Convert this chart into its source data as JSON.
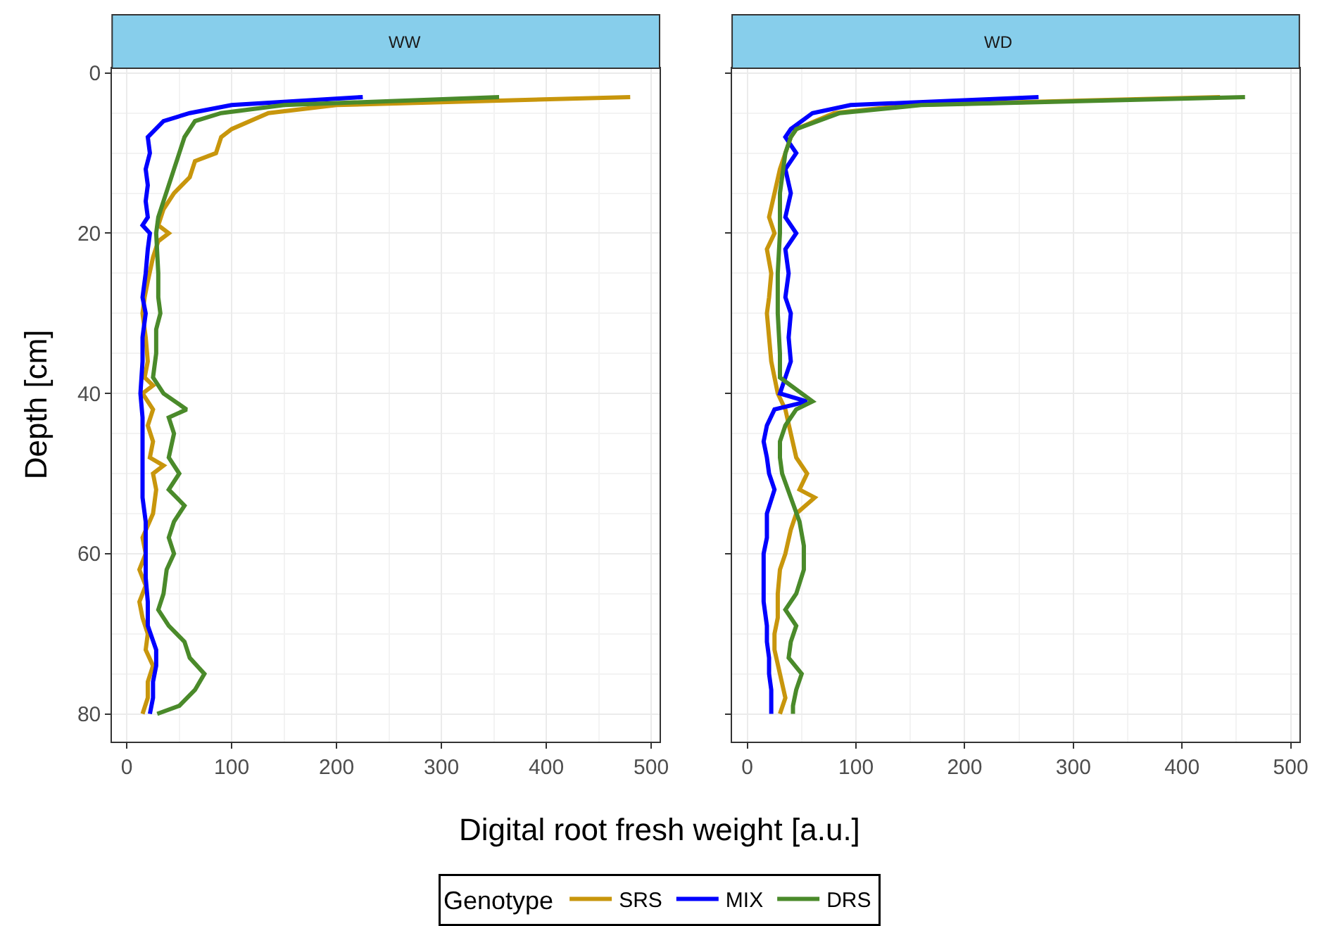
{
  "chart_data": [
    {
      "type": "line",
      "title": "WW",
      "xlabel": "Digital root fresh weight [a.u.]",
      "ylabel": "Depth [cm]",
      "legend_title": "Genotype",
      "legend": "bottom",
      "grid": true,
      "line_style": "solid",
      "xlim": [
        -14,
        508
      ],
      "ylim": [
        83.5,
        -0.6
      ],
      "xticks": [
        0,
        100,
        200,
        300,
        400,
        500
      ],
      "yticks": [
        0,
        20,
        40,
        60,
        80
      ],
      "series": [
        {
          "name": "SRS",
          "color": "#c8960c",
          "x": [
            480,
            200,
            135,
            100,
            90,
            85,
            65,
            60,
            45,
            35,
            30,
            40,
            30,
            25,
            20,
            17,
            15,
            18,
            20,
            17,
            25,
            15,
            25,
            20,
            25,
            22,
            35,
            25,
            28,
            25,
            15,
            18,
            12,
            18,
            12,
            15,
            20,
            18,
            25,
            20,
            20,
            15
          ],
          "values": [
            3,
            4,
            5,
            7,
            8,
            10,
            11,
            13,
            15,
            17,
            19,
            20,
            21,
            23,
            26,
            28,
            30,
            33,
            36,
            38,
            39,
            40,
            42,
            44,
            46,
            48,
            49,
            50,
            52,
            55,
            58,
            60,
            62,
            64,
            66,
            68,
            70,
            72,
            74,
            76,
            78,
            80
          ]
        },
        {
          "name": "MIX",
          "color": "#0000ff",
          "x": [
            225,
            100,
            60,
            35,
            20,
            22,
            18,
            20,
            18,
            20,
            15,
            22,
            20,
            18,
            15,
            18,
            15,
            15,
            13,
            15,
            15,
            15,
            15,
            18,
            18,
            18,
            20,
            20,
            28,
            28,
            25,
            25,
            22
          ],
          "values": [
            3,
            4,
            5,
            6,
            8,
            10,
            12,
            14,
            16,
            18,
            19,
            20,
            22,
            25,
            28,
            30,
            33,
            36,
            40,
            43,
            46,
            50,
            53,
            56,
            60,
            63,
            66,
            69,
            72,
            74,
            76,
            78,
            80
          ]
        },
        {
          "name": "DRS",
          "color": "#4a8a2a",
          "x": [
            355,
            150,
            90,
            65,
            55,
            50,
            45,
            40,
            35,
            30,
            28,
            30,
            30,
            32,
            28,
            28,
            25,
            35,
            57,
            40,
            45,
            40,
            50,
            40,
            55,
            45,
            40,
            45,
            38,
            35,
            30,
            40,
            55,
            60,
            74,
            65,
            50,
            29
          ],
          "values": [
            3,
            4,
            5,
            6,
            8,
            10,
            12,
            14,
            16,
            18,
            20,
            25,
            28,
            30,
            32,
            35,
            38,
            40,
            42,
            43,
            45,
            48,
            50,
            52,
            54,
            56,
            58,
            60,
            62,
            65,
            67,
            69,
            71,
            73,
            75,
            77,
            79,
            80
          ]
        }
      ]
    },
    {
      "type": "line",
      "title": "WD",
      "grid": true,
      "line_style": "solid",
      "tick_labels": "x",
      "xlim": [
        -14,
        508
      ],
      "ylim": [
        83.5,
        -0.6
      ],
      "xticks": [
        0,
        100,
        200,
        300,
        400,
        500
      ],
      "yticks": [
        0,
        20,
        40,
        60,
        80
      ],
      "series": [
        {
          "color": "#c8960c",
          "x": [
            435,
            150,
            80,
            45,
            40,
            35,
            30,
            25,
            20,
            25,
            18,
            22,
            20,
            18,
            20,
            22,
            25,
            28,
            35,
            40,
            45,
            55,
            48,
            62,
            45,
            40,
            35,
            30,
            28,
            28,
            25,
            25,
            30,
            35,
            30
          ],
          "values": [
            3,
            4,
            5,
            7,
            8,
            10,
            12,
            15,
            18,
            20,
            22,
            25,
            28,
            30,
            33,
            36,
            38,
            40,
            42,
            45,
            48,
            50,
            52,
            53,
            55,
            57,
            60,
            62,
            65,
            68,
            70,
            72,
            75,
            78,
            80
          ]
        },
        {
          "color": "#0000ff",
          "x": [
            268,
            95,
            60,
            40,
            35,
            45,
            35,
            40,
            35,
            45,
            35,
            38,
            35,
            40,
            38,
            40,
            35,
            30,
            55,
            25,
            18,
            15,
            18,
            20,
            25,
            18,
            18,
            15,
            15,
            15,
            18,
            18,
            20,
            20,
            22,
            22
          ],
          "values": [
            3,
            4,
            5,
            7,
            8,
            10,
            12,
            15,
            18,
            20,
            22,
            25,
            28,
            30,
            33,
            36,
            38,
            40,
            41,
            42,
            44,
            46,
            48,
            50,
            52,
            55,
            58,
            60,
            63,
            66,
            69,
            71,
            73,
            75,
            77,
            80
          ]
        },
        {
          "color": "#4a8a2a",
          "x": [
            458,
            160,
            85,
            45,
            40,
            35,
            30,
            30,
            28,
            28,
            30,
            30,
            60,
            45,
            35,
            30,
            30,
            32,
            40,
            48,
            52,
            52,
            45,
            35,
            45,
            40,
            38,
            50,
            45,
            42,
            42
          ],
          "values": [
            3,
            4,
            5,
            7,
            8,
            10,
            15,
            20,
            25,
            30,
            35,
            38,
            41,
            42,
            44,
            46,
            48,
            50,
            53,
            56,
            59,
            62,
            65,
            67,
            69,
            71,
            73,
            75,
            77,
            79,
            80
          ]
        }
      ]
    }
  ]
}
